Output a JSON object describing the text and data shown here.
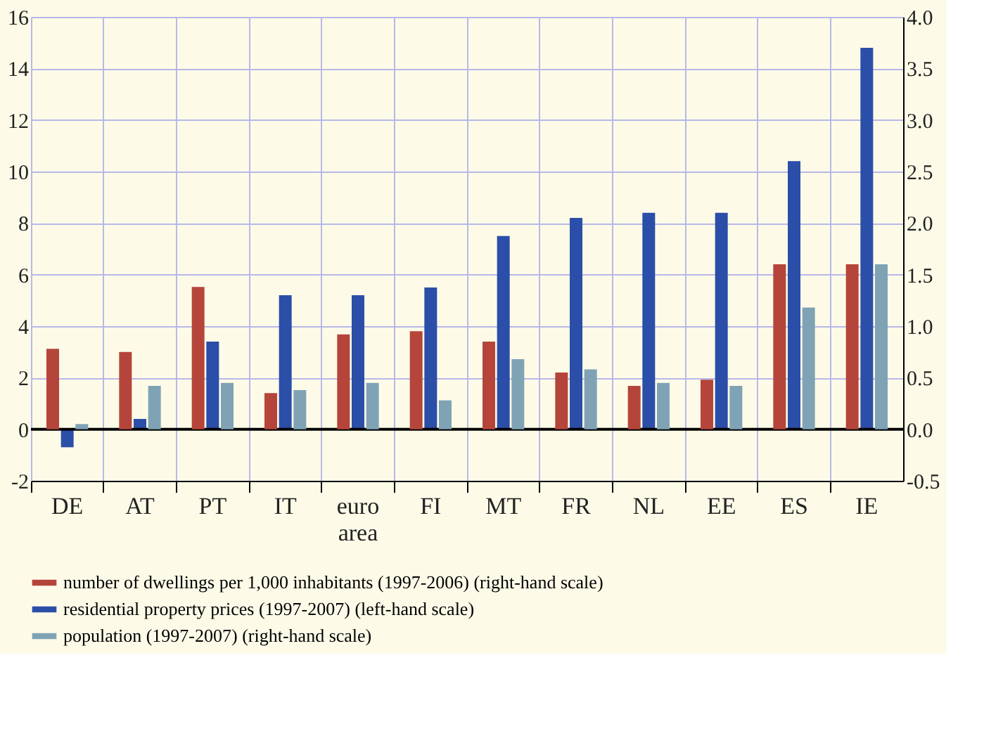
{
  "chart_data": {
    "type": "bar",
    "categories": [
      "DE",
      "AT",
      "PT",
      "IT",
      "euro area",
      "FI",
      "MT",
      "FR",
      "NL",
      "EE",
      "ES",
      "IE"
    ],
    "series": [
      {
        "name": "number of dwellings per 1,000 inhabitants (1997-2006) (right-hand scale)",
        "color": "#b5453a",
        "axis": "y2",
        "values": [
          0.78,
          0.75,
          1.38,
          0.35,
          0.92,
          0.95,
          0.85,
          0.55,
          0.42,
          0.48,
          1.6,
          1.6
        ]
      },
      {
        "name": "residential property prices (1997-2007) (left-hand scale)",
        "color": "#2b4ea8",
        "values": [
          -0.7,
          0.4,
          3.4,
          5.2,
          5.2,
          5.5,
          7.5,
          8.2,
          8.4,
          8.4,
          10.4,
          14.8
        ]
      },
      {
        "name": "population (1997-2007) (right-hand scale)",
        "color": "#7fa3b5",
        "axis": "y2",
        "values": [
          0.05,
          0.42,
          0.45,
          0.38,
          0.45,
          0.28,
          0.68,
          0.58,
          0.45,
          0.42,
          1.18,
          1.6
        ]
      }
    ],
    "ylim": [
      -2,
      16
    ],
    "yticks": [
      -2,
      0,
      2,
      4,
      6,
      8,
      10,
      12,
      14,
      16
    ],
    "y2lim": [
      -0.5,
      4
    ],
    "y2ticks": [
      -0.5,
      {
        "value": 0,
        "label": "0.0"
      },
      0.5,
      {
        "value": 1,
        "label": "1.0"
      },
      1.5,
      {
        "value": 2,
        "label": "2.0"
      },
      2.5,
      {
        "value": 3,
        "label": "3.0"
      },
      3.5,
      {
        "value": 4,
        "label": "4.0"
      }
    ],
    "ref_lines": [
      {
        "axis": "y",
        "value": 0,
        "color": "#000000"
      }
    ],
    "grid": true,
    "legend": "bottom"
  }
}
